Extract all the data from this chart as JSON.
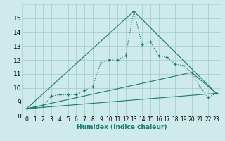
{
  "xlabel": "Humidex (Indice chaleur)",
  "ylabel": "",
  "background_color": "#ceeaea",
  "line_color": "#1a7a6e",
  "grid_color": "#aacfcf",
  "xlim": [
    -0.5,
    23.5
  ],
  "ylim": [
    8,
    16
  ],
  "yticks": [
    8,
    9,
    10,
    11,
    12,
    13,
    14,
    15
  ],
  "xticks": [
    0,
    1,
    2,
    3,
    4,
    5,
    6,
    7,
    8,
    9,
    10,
    11,
    12,
    13,
    14,
    15,
    16,
    17,
    18,
    19,
    20,
    21,
    22,
    23
  ],
  "series": [
    {
      "x": [
        0,
        1,
        2,
        3,
        4,
        5,
        6,
        7,
        8,
        9,
        10,
        11,
        12,
        13,
        14,
        15,
        16,
        17,
        18,
        19,
        20,
        21,
        22,
        23
      ],
      "y": [
        8.5,
        8.6,
        8.7,
        9.4,
        9.5,
        9.5,
        9.5,
        9.8,
        10.1,
        11.8,
        12.0,
        12.0,
        12.3,
        15.5,
        13.1,
        13.3,
        12.3,
        12.2,
        11.7,
        11.6,
        11.1,
        10.1,
        9.3,
        9.6
      ],
      "style": "dotted",
      "marker": "+"
    },
    {
      "x": [
        0,
        23
      ],
      "y": [
        8.5,
        9.6
      ],
      "style": "solid",
      "marker": null
    },
    {
      "x": [
        0,
        20,
        23
      ],
      "y": [
        8.5,
        11.1,
        9.6
      ],
      "style": "solid",
      "marker": null
    },
    {
      "x": [
        0,
        13,
        23
      ],
      "y": [
        8.5,
        15.5,
        9.6
      ],
      "style": "solid",
      "marker": null
    }
  ]
}
